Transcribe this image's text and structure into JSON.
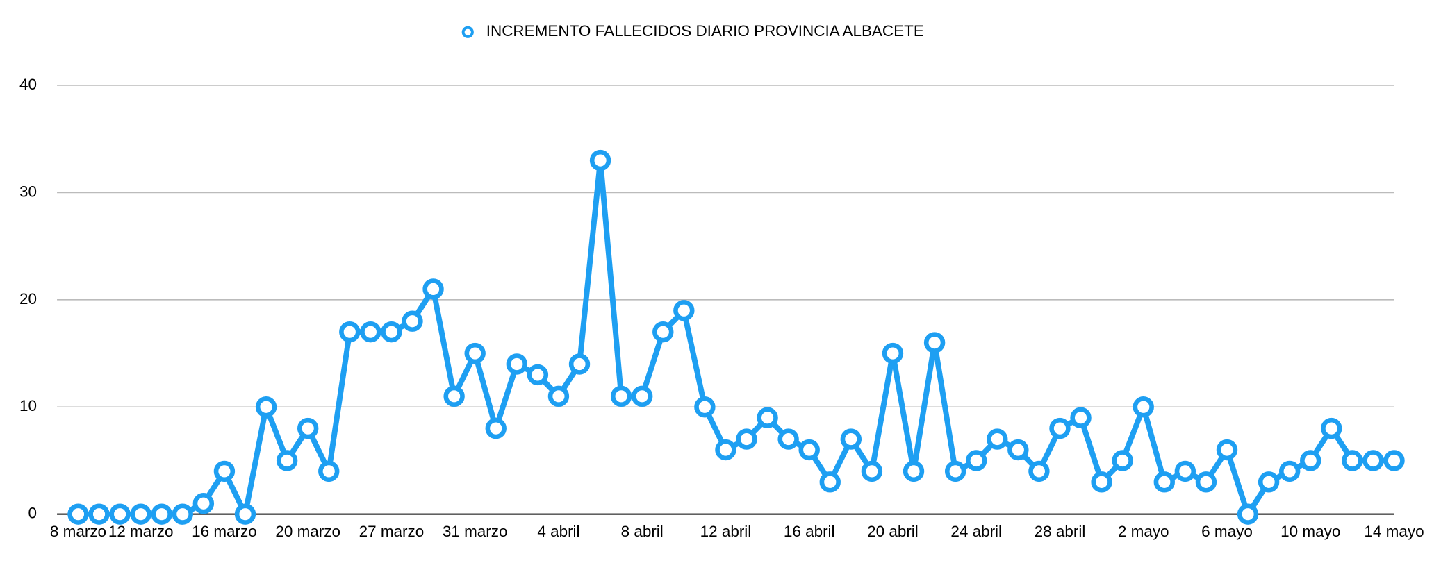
{
  "chart_data": {
    "type": "line",
    "categories": [
      "8 marzo",
      null,
      null,
      "12 marzo",
      null,
      null,
      null,
      "16 marzo",
      null,
      null,
      null,
      "20 marzo",
      null,
      null,
      null,
      "27 marzo",
      null,
      null,
      null,
      "31 marzo",
      null,
      null,
      null,
      "4 abril",
      null,
      null,
      null,
      "8 abril",
      null,
      null,
      null,
      "12 abril",
      null,
      null,
      null,
      "16 abril",
      null,
      null,
      null,
      "20 abril",
      null,
      null,
      null,
      "24 abril",
      null,
      null,
      null,
      "28 abril",
      null,
      null,
      null,
      "2 mayo",
      null,
      null,
      null,
      "6 mayo",
      null,
      null,
      null,
      "10 mayo",
      null,
      null,
      null,
      "14 mayo"
    ],
    "series": [
      {
        "name": "INCREMENTO FALLECIDOS DIARIO PROVINCIA ALBACETE",
        "color": "#1e9ff2",
        "values": [
          0,
          0,
          0,
          0,
          0,
          0,
          1,
          4,
          0,
          10,
          5,
          8,
          4,
          17,
          17,
          17,
          18,
          21,
          11,
          15,
          8,
          14,
          13,
          11,
          14,
          33,
          11,
          11,
          17,
          19,
          10,
          6,
          7,
          9,
          7,
          6,
          3,
          7,
          4,
          15,
          4,
          16,
          4,
          5,
          7,
          6,
          4,
          8,
          9,
          3,
          5,
          10,
          3,
          4,
          3,
          6,
          0,
          3,
          4,
          5,
          8,
          5,
          5,
          5
        ]
      }
    ],
    "ylim": [
      0,
      40
    ],
    "yticks": [
      0,
      10,
      20,
      30,
      40
    ],
    "grid": true,
    "legend": "top"
  }
}
